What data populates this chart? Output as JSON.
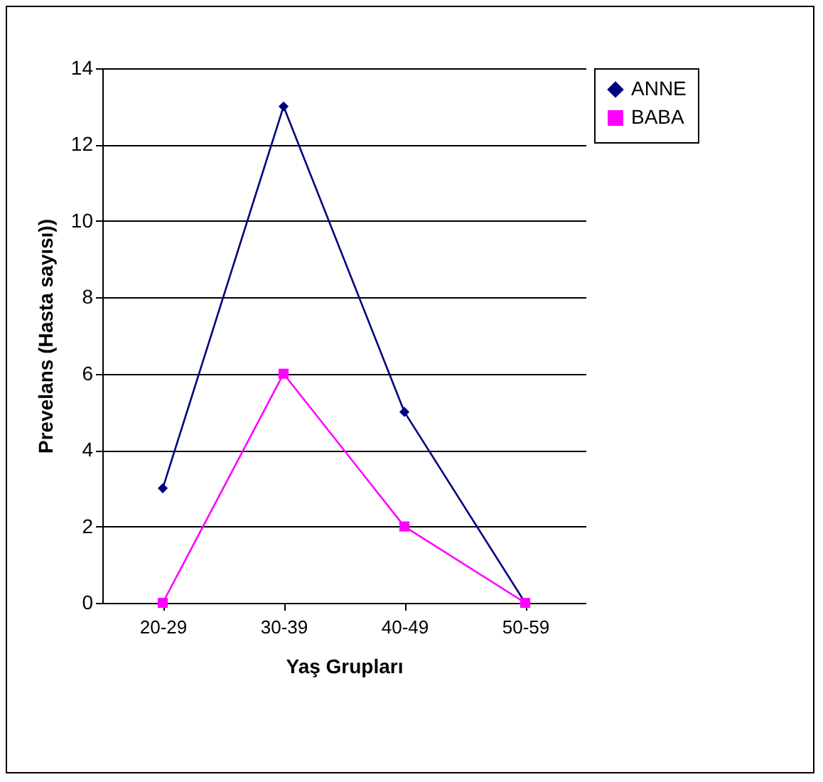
{
  "chart_data": {
    "type": "line",
    "xlabel": "Yaş Grupları",
    "ylabel": "Prevelans (Hasta sayısı))",
    "categories": [
      "20-29",
      "30-39",
      "40-49",
      "50-59"
    ],
    "series": [
      {
        "name": "ANNE",
        "color": "#000080",
        "marker": "diamond",
        "values": [
          3,
          13,
          5,
          0
        ]
      },
      {
        "name": "BABA",
        "color": "#ff00ff",
        "marker": "square",
        "values": [
          0,
          6,
          2,
          0
        ]
      }
    ],
    "ylim": [
      0,
      14
    ],
    "yticks": [
      0,
      2,
      4,
      6,
      8,
      10,
      12,
      14
    ],
    "grid": "y",
    "legend": "right"
  }
}
